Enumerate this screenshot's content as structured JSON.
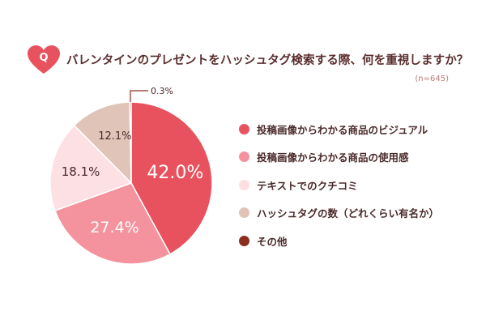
{
  "header": {
    "q_label": "Q",
    "question": "バレンタインのプレゼントをハッシュタグ検索する際、何を重視しますか？",
    "sample_size": "(n=645)"
  },
  "colors": {
    "badge": "#e8525e",
    "question_text": "#5a2e2e"
  },
  "chart_data": {
    "type": "pie",
    "title": "バレンタインのプレゼントをハッシュタグ検索する際、何を重視しますか？",
    "n": 645,
    "unit": "%",
    "start": "12 o'clock",
    "direction": "clockwise",
    "legend_position": "right",
    "slices": [
      {
        "label": "投稿画像からわかる商品のビジュアル",
        "value": 42.0,
        "display": "42.0%",
        "color": "#e8525e",
        "label_color": "#ffffff"
      },
      {
        "label": "投稿画像からわかる商品の使用感",
        "value": 27.4,
        "display": "27.4%",
        "color": "#f4939d",
        "label_color": "#ffffff"
      },
      {
        "label": "テキストでのクチコミ",
        "value": 18.1,
        "display": "18.1%",
        "color": "#fde0e3",
        "label_color": "#4a2a2a"
      },
      {
        "label": "ハッシュタグの数（どれくらい有名か）",
        "value": 12.1,
        "display": "12.1%",
        "color": "#e0c4b8",
        "label_color": "#4a2a2a"
      },
      {
        "label": "その他",
        "value": 0.3,
        "display": "0.3%",
        "color": "#8b2e20",
        "label_color": "#4a2a2a"
      }
    ]
  }
}
